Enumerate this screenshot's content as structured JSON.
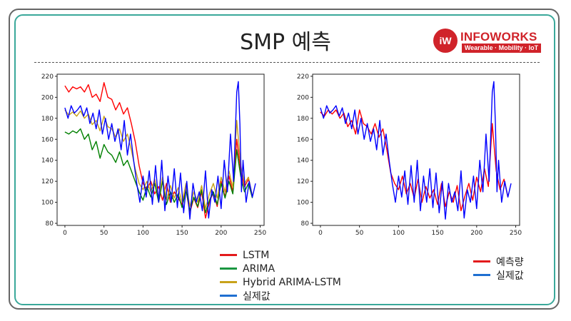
{
  "slide": {
    "title": "SMP 예측",
    "logo": {
      "mark": "iW",
      "name": "INFOWORKS",
      "tagline": "Wearable · Mobility · IoT",
      "color": "#d0232a"
    }
  },
  "legend_left": [
    {
      "label": "LSTM",
      "color": "#e31a1c"
    },
    {
      "label": "ARIMA",
      "color": "#1a9641"
    },
    {
      "label": "Hybrid  ARIMA-LSTM",
      "color": "#c8a21a"
    },
    {
      "label": "실제값",
      "color": "#1f6fd1"
    }
  ],
  "legend_right": [
    {
      "label": "예측량",
      "color": "#e31a1c"
    },
    {
      "label": "실제값",
      "color": "#1f6fd1"
    }
  ],
  "chart_data": [
    {
      "type": "line",
      "title": "",
      "xlim": [
        -10,
        255
      ],
      "ylim": [
        78,
        222
      ],
      "xticks": [
        0,
        50,
        100,
        150,
        200,
        250
      ],
      "yticks": [
        80,
        100,
        120,
        140,
        160,
        180,
        200,
        220
      ],
      "series": [
        {
          "name": "LSTM",
          "color": "#ff0000",
          "x": [
            0,
            5,
            10,
            15,
            20,
            25,
            30,
            35,
            40,
            45,
            50,
            55,
            60,
            65,
            70,
            75,
            80,
            85,
            90,
            95,
            100,
            105,
            110,
            115,
            120,
            125,
            130,
            135,
            140,
            145,
            150,
            155,
            160,
            165,
            170,
            175,
            180,
            185,
            190,
            195,
            200,
            205,
            210,
            215,
            220,
            225,
            230,
            235,
            240
          ],
          "y": [
            211,
            205,
            210,
            208,
            210,
            205,
            212,
            200,
            203,
            196,
            214,
            200,
            198,
            188,
            195,
            184,
            190,
            175,
            158,
            135,
            118,
            112,
            120,
            108,
            115,
            102,
            118,
            100,
            110,
            104,
            98,
            112,
            90,
            104,
            95,
            110,
            85,
            100,
            110,
            96,
            120,
            105,
            125,
            110,
            160,
            130,
            115,
            122,
            106
          ]
        },
        {
          "name": "ARIMA",
          "color": "#008000",
          "x": [
            0,
            5,
            10,
            15,
            20,
            25,
            30,
            35,
            40,
            45,
            50,
            55,
            60,
            65,
            70,
            75,
            80,
            85,
            90,
            95,
            100,
            105,
            110,
            115,
            120,
            125,
            130,
            135,
            140,
            145,
            150,
            155,
            160,
            165,
            170,
            175,
            180,
            185,
            190,
            195,
            200,
            205,
            210,
            215,
            220,
            225,
            230,
            235,
            240
          ],
          "y": [
            167,
            165,
            168,
            166,
            170,
            160,
            165,
            150,
            158,
            142,
            155,
            148,
            145,
            138,
            148,
            135,
            140,
            130,
            120,
            110,
            102,
            115,
            105,
            118,
            100,
            120,
            98,
            110,
            100,
            108,
            95,
            112,
            92,
            105,
            96,
            112,
            90,
            102,
            110,
            98,
            118,
            104,
            120,
            108,
            150,
            125,
            110,
            118,
            104
          ]
        },
        {
          "name": "Hybrid  ARIMA-LSTM",
          "color": "#c8a21a",
          "x": [
            0,
            5,
            10,
            15,
            20,
            25,
            30,
            35,
            40,
            45,
            50,
            55,
            60,
            65,
            70,
            75,
            80,
            85,
            90,
            95,
            100,
            105,
            110,
            115,
            120,
            125,
            130,
            135,
            140,
            145,
            150,
            155,
            160,
            165,
            170,
            175,
            180,
            185,
            190,
            195,
            200,
            205,
            210,
            215,
            220,
            225,
            230,
            235,
            240
          ],
          "y": [
            188,
            183,
            186,
            182,
            187,
            180,
            184,
            174,
            178,
            168,
            182,
            172,
            170,
            162,
            170,
            158,
            165,
            150,
            132,
            118,
            112,
            120,
            110,
            122,
            105,
            124,
            102,
            116,
            104,
            114,
            100,
            118,
            96,
            110,
            100,
            116,
            94,
            108,
            118,
            104,
            124,
            110,
            130,
            114,
            178,
            135,
            118,
            124,
            106
          ]
        },
        {
          "name": "실제값",
          "color": "#0000ff",
          "x": [
            0,
            4,
            8,
            12,
            16,
            20,
            24,
            28,
            32,
            36,
            40,
            44,
            48,
            52,
            56,
            60,
            64,
            68,
            72,
            76,
            80,
            84,
            88,
            92,
            96,
            100,
            104,
            108,
            112,
            116,
            120,
            124,
            128,
            132,
            136,
            140,
            144,
            148,
            152,
            156,
            160,
            164,
            168,
            172,
            176,
            180,
            184,
            188,
            192,
            196,
            200,
            204,
            208,
            212,
            216,
            220,
            222,
            224,
            226,
            228,
            232,
            236,
            240,
            244
          ],
          "y": [
            190,
            180,
            192,
            185,
            188,
            192,
            182,
            190,
            175,
            185,
            170,
            188,
            165,
            180,
            160,
            175,
            158,
            170,
            150,
            178,
            145,
            165,
            140,
            118,
            100,
            125,
            105,
            130,
            98,
            135,
            100,
            140,
            92,
            125,
            100,
            132,
            95,
            128,
            90,
            120,
            84,
            118,
            100,
            110,
            92,
            130,
            85,
            112,
            100,
            125,
            94,
            140,
            110,
            165,
            120,
            205,
            215,
            175,
            110,
            140,
            100,
            120,
            105,
            118
          ]
        }
      ]
    },
    {
      "type": "line",
      "title": "",
      "xlim": [
        -10,
        255
      ],
      "ylim": [
        78,
        222
      ],
      "xticks": [
        0,
        50,
        100,
        150,
        200,
        250
      ],
      "yticks": [
        80,
        100,
        120,
        140,
        160,
        180,
        200,
        220
      ],
      "series": [
        {
          "name": "예측량",
          "color": "#ff0000",
          "x": [
            0,
            5,
            10,
            15,
            20,
            25,
            30,
            35,
            40,
            45,
            50,
            55,
            60,
            65,
            70,
            75,
            80,
            85,
            90,
            95,
            100,
            105,
            110,
            115,
            120,
            125,
            130,
            135,
            140,
            145,
            150,
            155,
            160,
            165,
            170,
            175,
            180,
            185,
            190,
            195,
            200,
            205,
            210,
            215,
            220,
            225,
            230,
            235,
            240
          ],
          "y": [
            186,
            182,
            188,
            184,
            188,
            180,
            185,
            172,
            178,
            165,
            188,
            175,
            172,
            165,
            175,
            162,
            170,
            150,
            128,
            118,
            112,
            125,
            108,
            118,
            104,
            122,
            100,
            115,
            104,
            112,
            98,
            118,
            96,
            110,
            100,
            116,
            92,
            106,
            118,
            102,
            124,
            110,
            132,
            115,
            175,
            130,
            112,
            122,
            105
          ]
        },
        {
          "name": "실제값",
          "color": "#0000ff",
          "x": [
            0,
            4,
            8,
            12,
            16,
            20,
            24,
            28,
            32,
            36,
            40,
            44,
            48,
            52,
            56,
            60,
            64,
            68,
            72,
            76,
            80,
            84,
            88,
            92,
            96,
            100,
            104,
            108,
            112,
            116,
            120,
            124,
            128,
            132,
            136,
            140,
            144,
            148,
            152,
            156,
            160,
            164,
            168,
            172,
            176,
            180,
            184,
            188,
            192,
            196,
            200,
            204,
            208,
            212,
            216,
            220,
            222,
            224,
            226,
            228,
            232,
            236,
            240,
            244
          ],
          "y": [
            190,
            180,
            192,
            185,
            188,
            192,
            182,
            190,
            175,
            185,
            170,
            188,
            165,
            180,
            160,
            175,
            158,
            170,
            150,
            178,
            145,
            165,
            140,
            118,
            100,
            125,
            105,
            130,
            98,
            135,
            100,
            140,
            92,
            125,
            100,
            132,
            95,
            128,
            90,
            120,
            84,
            118,
            100,
            110,
            92,
            130,
            85,
            112,
            100,
            125,
            94,
            140,
            110,
            165,
            120,
            205,
            215,
            175,
            110,
            140,
            100,
            120,
            105,
            118
          ]
        }
      ]
    }
  ]
}
